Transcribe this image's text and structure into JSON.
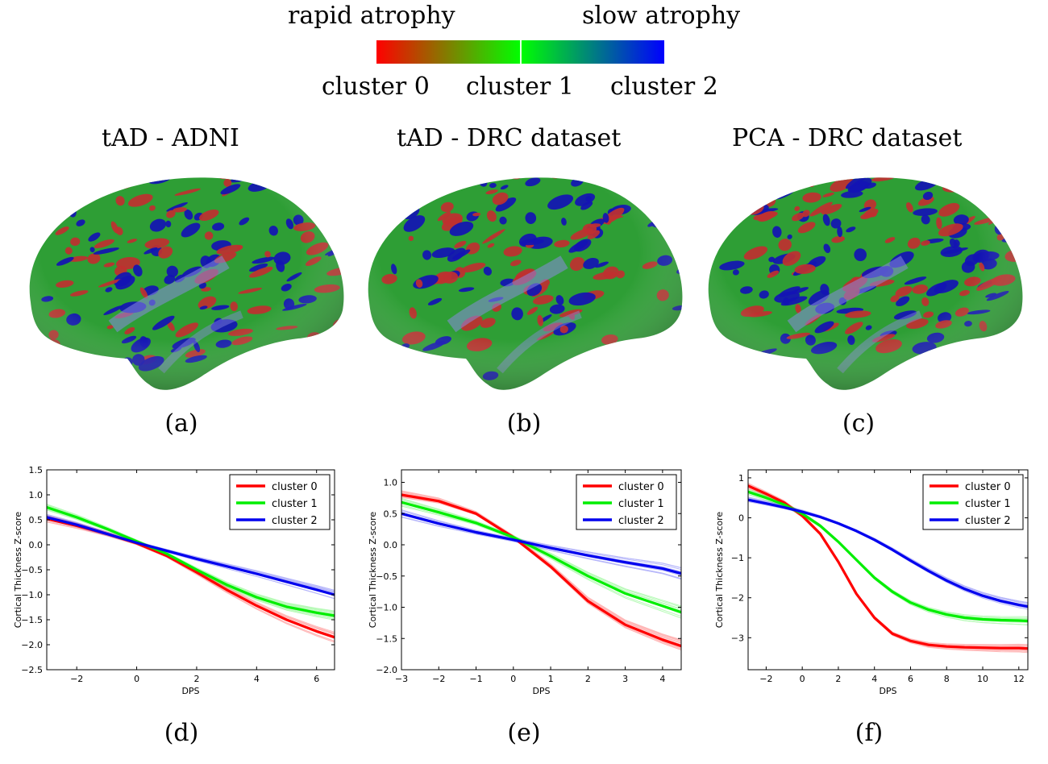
{
  "colorbar": {
    "left_label": "rapid atrophy",
    "right_label": "slow atrophy",
    "clusters": [
      "cluster 0",
      "cluster 1",
      "cluster 2"
    ],
    "gradient_colors": [
      "#ff0000",
      "#00ff00",
      "#0000ff"
    ]
  },
  "brains": [
    {
      "title": "tAD - ADNI",
      "caption": "(a)"
    },
    {
      "title": "tAD - DRC dataset",
      "caption": "(b)"
    },
    {
      "title": "PCA - DRC dataset",
      "caption": "(c)"
    }
  ],
  "brain_colors": {
    "red": "#c03030",
    "green": "#2e9e35",
    "blue": "#1414b4",
    "shade": "#3a3a5a"
  },
  "plot_captions": [
    "(d)",
    "(e)",
    "(f)"
  ],
  "chart_data": [
    {
      "type": "line",
      "xlabel": "DPS",
      "ylabel": "Cortical Thickness Z-score",
      "xlim": [
        -3,
        6.6
      ],
      "ylim": [
        -2.5,
        1.5
      ],
      "xticks": [
        -2,
        0,
        2,
        4,
        6
      ],
      "yticks": [
        1.5,
        1.0,
        0.5,
        0.0,
        -0.5,
        -1.0,
        -1.5,
        -2.0,
        -2.5
      ],
      "ytick_labels": [
        "1.5",
        "1.0",
        "0.5",
        "0.0",
        "−0.5",
        "−1.0",
        "−1.5",
        "−2.0",
        "−2.5"
      ],
      "xtick_labels": [
        "−2",
        "0",
        "2",
        "4",
        "6"
      ],
      "legend_position": "top-right",
      "grid": false,
      "series": [
        {
          "name": "cluster 0",
          "color": "#ff0000",
          "x": [
            -3,
            -2,
            -1,
            0,
            1,
            2,
            3,
            4,
            5,
            6,
            6.6
          ],
          "y": [
            0.52,
            0.38,
            0.22,
            0.03,
            -0.22,
            -0.55,
            -0.9,
            -1.22,
            -1.5,
            -1.73,
            -1.85
          ]
        },
        {
          "name": "cluster 1",
          "color": "#00ee00",
          "x": [
            -3,
            -2,
            -1,
            0,
            1,
            2,
            3,
            4,
            5,
            6,
            6.6
          ],
          "y": [
            0.75,
            0.55,
            0.32,
            0.07,
            -0.18,
            -0.5,
            -0.8,
            -1.05,
            -1.24,
            -1.36,
            -1.42
          ]
        },
        {
          "name": "cluster 2",
          "color": "#0000ee",
          "x": [
            -3,
            -2,
            -1,
            0,
            1,
            2,
            3,
            4,
            5,
            6,
            6.6
          ],
          "y": [
            0.55,
            0.4,
            0.22,
            0.04,
            -0.12,
            -0.28,
            -0.43,
            -0.58,
            -0.74,
            -0.9,
            -1.0
          ]
        }
      ]
    },
    {
      "type": "line",
      "xlabel": "DPS",
      "ylabel": "Cortical Thickness Z-score",
      "xlim": [
        -3,
        4.5
      ],
      "ylim": [
        -2.0,
        1.2
      ],
      "xticks": [
        -3,
        -2,
        -1,
        0,
        1,
        2,
        3,
        4
      ],
      "yticks": [
        1.0,
        0.5,
        0.0,
        -0.5,
        -1.0,
        -1.5,
        -2.0
      ],
      "ytick_labels": [
        "1.0",
        "0.5",
        "0.0",
        "−0.5",
        "−1.0",
        "−1.5",
        "−2.0"
      ],
      "xtick_labels": [
        "−3",
        "−2",
        "−1",
        "0",
        "1",
        "2",
        "3",
        "4"
      ],
      "legend_position": "top-right",
      "grid": false,
      "series": [
        {
          "name": "cluster 0",
          "color": "#ff0000",
          "x": [
            -3,
            -2,
            -1,
            0,
            1,
            2,
            3,
            4,
            4.5
          ],
          "y": [
            0.8,
            0.7,
            0.5,
            0.12,
            -0.35,
            -0.9,
            -1.28,
            -1.52,
            -1.62
          ]
        },
        {
          "name": "cluster 1",
          "color": "#00ee00",
          "x": [
            -3,
            -2,
            -1,
            0,
            1,
            2,
            3,
            4,
            4.5
          ],
          "y": [
            0.68,
            0.52,
            0.35,
            0.12,
            -0.18,
            -0.5,
            -0.78,
            -0.98,
            -1.08
          ]
        },
        {
          "name": "cluster 2",
          "color": "#0000ee",
          "x": [
            -3,
            -2,
            -1,
            0,
            1,
            2,
            3,
            4,
            4.5
          ],
          "y": [
            0.5,
            0.34,
            0.2,
            0.08,
            -0.05,
            -0.17,
            -0.28,
            -0.38,
            -0.46
          ]
        }
      ]
    },
    {
      "type": "line",
      "xlabel": "DPS",
      "ylabel": "Cortical Thickness Z-score",
      "xlim": [
        -3,
        12.5
      ],
      "ylim": [
        -3.8,
        1.2
      ],
      "xticks": [
        -2,
        0,
        2,
        4,
        6,
        8,
        10,
        12
      ],
      "yticks": [
        1,
        0,
        -1,
        -2,
        -3
      ],
      "ytick_labels": [
        "1",
        "0",
        "−1",
        "−2",
        "−3"
      ],
      "xtick_labels": [
        "−2",
        "0",
        "2",
        "4",
        "6",
        "8",
        "10",
        "12"
      ],
      "legend_position": "top-right",
      "grid": false,
      "series": [
        {
          "name": "cluster 0",
          "color": "#ff0000",
          "x": [
            -3,
            -2,
            -1,
            0,
            1,
            2,
            3,
            4,
            5,
            6,
            7,
            8,
            9,
            10,
            11,
            12,
            12.5
          ],
          "y": [
            0.8,
            0.6,
            0.38,
            0.05,
            -0.4,
            -1.1,
            -1.9,
            -2.5,
            -2.9,
            -3.08,
            -3.18,
            -3.22,
            -3.24,
            -3.25,
            -3.26,
            -3.26,
            -3.27
          ]
        },
        {
          "name": "cluster 1",
          "color": "#00ee00",
          "x": [
            -3,
            -2,
            -1,
            0,
            1,
            2,
            3,
            4,
            5,
            6,
            7,
            8,
            9,
            10,
            11,
            12,
            12.5
          ],
          "y": [
            0.65,
            0.5,
            0.33,
            0.1,
            -0.2,
            -0.6,
            -1.05,
            -1.5,
            -1.85,
            -2.12,
            -2.3,
            -2.42,
            -2.5,
            -2.54,
            -2.56,
            -2.57,
            -2.58
          ]
        },
        {
          "name": "cluster 2",
          "color": "#0000ee",
          "x": [
            -3,
            -2,
            -1,
            0,
            1,
            2,
            3,
            4,
            5,
            6,
            7,
            8,
            9,
            10,
            11,
            12,
            12.5
          ],
          "y": [
            0.45,
            0.36,
            0.26,
            0.15,
            0.02,
            -0.14,
            -0.33,
            -0.55,
            -0.8,
            -1.07,
            -1.33,
            -1.57,
            -1.78,
            -1.95,
            -2.08,
            -2.18,
            -2.22
          ]
        }
      ]
    }
  ]
}
